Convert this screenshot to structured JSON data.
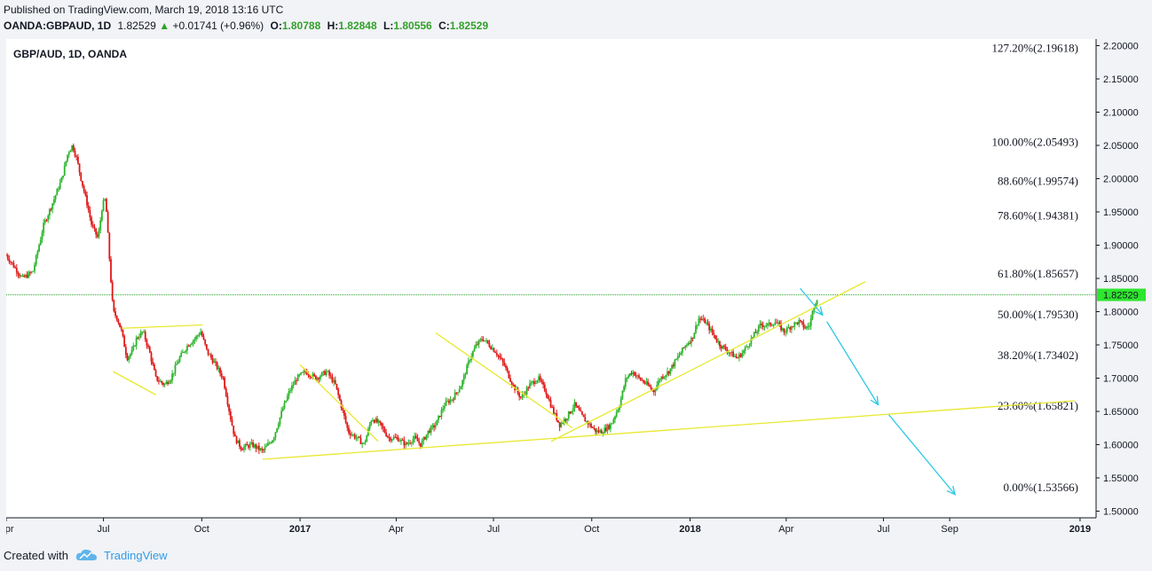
{
  "header": {
    "published": "Published on TradingView.com, March 19, 2018 13:16 UTC",
    "symbol": "OANDA:GBPAUD, 1D",
    "last": "1.82529",
    "change": "+0.01741 (+0.96%)",
    "o_label": "O:",
    "o": "1.80788",
    "h_label": "H:",
    "h": "1.82848",
    "l_label": "L:",
    "l": "1.80556",
    "c_label": "C:",
    "c": "1.82529"
  },
  "footer": {
    "created": "Created with",
    "brand": "TradingView"
  },
  "colors": {
    "up": "#2db52d",
    "down": "#e01818",
    "trend": "#e8e830",
    "arrow": "#2bc9e3",
    "price_tag": "#2ee62e"
  },
  "chart_data": {
    "type": "candlestick",
    "title": "GBP/AUD, 1D, OANDA",
    "ylim": [
      1.49,
      2.21
    ],
    "yticks": [
      "2.20000",
      "2.15000",
      "2.10000",
      "2.05000",
      "2.00000",
      "1.95000",
      "1.90000",
      "1.85000",
      "1.80000",
      "1.75000",
      "1.70000",
      "1.65000",
      "1.60000",
      "1.55000",
      "1.50000"
    ],
    "xticks": [
      "Apr",
      "Jul",
      "Oct",
      "2017",
      "Apr",
      "Jul",
      "Oct",
      "2018",
      "Apr",
      "Jul",
      "Sep",
      "2019"
    ],
    "x_tick_days": [
      0,
      91,
      183,
      275,
      365,
      456,
      548,
      640,
      730,
      821,
      883,
      1005
    ],
    "x_range_days": [
      0,
      1020
    ],
    "current_price": {
      "label": "1.82529",
      "value": 1.82529
    },
    "fib_levels": [
      {
        "label": "127.20%(2.19618)",
        "value": 2.19618
      },
      {
        "label": "100.00%(2.05493)",
        "value": 2.05493
      },
      {
        "label": "88.60%(1.99574)",
        "value": 1.99574
      },
      {
        "label": "78.60%(1.94381)",
        "value": 1.94381
      },
      {
        "label": "61.80%(1.85657)",
        "value": 1.85657
      },
      {
        "label": "50.00%(1.79530)",
        "value": 1.7953
      },
      {
        "label": "38.20%(1.73402)",
        "value": 1.73402
      },
      {
        "label": "23.60%(1.65821)",
        "value": 1.65821
      },
      {
        "label": "0.00%(1.53566)",
        "value": 1.53566
      }
    ],
    "price_path": [
      [
        0,
        1.885
      ],
      [
        15,
        1.85
      ],
      [
        25,
        1.86
      ],
      [
        35,
        1.93
      ],
      [
        45,
        1.97
      ],
      [
        52,
        2.0
      ],
      [
        58,
        2.04
      ],
      [
        62,
        2.05
      ],
      [
        66,
        2.03
      ],
      [
        70,
        2.0
      ],
      [
        76,
        1.96
      ],
      [
        80,
        1.93
      ],
      [
        86,
        1.91
      ],
      [
        90,
        1.96
      ],
      [
        93,
        1.97
      ],
      [
        97,
        1.87
      ],
      [
        100,
        1.8
      ],
      [
        104,
        1.79
      ],
      [
        108,
        1.77
      ],
      [
        113,
        1.73
      ],
      [
        118,
        1.74
      ],
      [
        122,
        1.76
      ],
      [
        128,
        1.77
      ],
      [
        134,
        1.74
      ],
      [
        140,
        1.7
      ],
      [
        148,
        1.69
      ],
      [
        154,
        1.7
      ],
      [
        162,
        1.73
      ],
      [
        170,
        1.75
      ],
      [
        177,
        1.76
      ],
      [
        182,
        1.77
      ],
      [
        188,
        1.74
      ],
      [
        196,
        1.72
      ],
      [
        203,
        1.7
      ],
      [
        210,
        1.64
      ],
      [
        214,
        1.61
      ],
      [
        220,
        1.595
      ],
      [
        230,
        1.6
      ],
      [
        240,
        1.59
      ],
      [
        250,
        1.61
      ],
      [
        258,
        1.65
      ],
      [
        265,
        1.68
      ],
      [
        272,
        1.7
      ],
      [
        280,
        1.71
      ],
      [
        290,
        1.7
      ],
      [
        300,
        1.71
      ],
      [
        308,
        1.69
      ],
      [
        315,
        1.65
      ],
      [
        320,
        1.62
      ],
      [
        328,
        1.61
      ],
      [
        335,
        1.6
      ],
      [
        342,
        1.64
      ],
      [
        350,
        1.63
      ],
      [
        358,
        1.61
      ],
      [
        366,
        1.61
      ],
      [
        374,
        1.6
      ],
      [
        382,
        1.61
      ],
      [
        388,
        1.6
      ],
      [
        395,
        1.62
      ],
      [
        402,
        1.63
      ],
      [
        410,
        1.66
      ],
      [
        418,
        1.67
      ],
      [
        426,
        1.69
      ],
      [
        434,
        1.73
      ],
      [
        440,
        1.75
      ],
      [
        446,
        1.76
      ],
      [
        452,
        1.75
      ],
      [
        458,
        1.74
      ],
      [
        466,
        1.72
      ],
      [
        474,
        1.69
      ],
      [
        482,
        1.67
      ],
      [
        490,
        1.69
      ],
      [
        498,
        1.7
      ],
      [
        505,
        1.68
      ],
      [
        512,
        1.65
      ],
      [
        518,
        1.63
      ],
      [
        524,
        1.64
      ],
      [
        532,
        1.66
      ],
      [
        540,
        1.64
      ],
      [
        546,
        1.63
      ],
      [
        552,
        1.62
      ],
      [
        558,
        1.62
      ],
      [
        566,
        1.63
      ],
      [
        574,
        1.66
      ],
      [
        580,
        1.7
      ],
      [
        586,
        1.71
      ],
      [
        592,
        1.7
      ],
      [
        600,
        1.69
      ],
      [
        606,
        1.68
      ],
      [
        612,
        1.7
      ],
      [
        620,
        1.71
      ],
      [
        628,
        1.73
      ],
      [
        636,
        1.75
      ],
      [
        642,
        1.76
      ],
      [
        648,
        1.79
      ],
      [
        654,
        1.785
      ],
      [
        660,
        1.77
      ],
      [
        668,
        1.75
      ],
      [
        676,
        1.74
      ],
      [
        684,
        1.73
      ],
      [
        690,
        1.74
      ],
      [
        698,
        1.76
      ],
      [
        706,
        1.78
      ],
      [
        714,
        1.78
      ],
      [
        720,
        1.785
      ],
      [
        728,
        1.77
      ],
      [
        736,
        1.78
      ],
      [
        742,
        1.785
      ],
      [
        748,
        1.775
      ],
      [
        752,
        1.78
      ],
      [
        756,
        1.81
      ],
      [
        760,
        1.825
      ]
    ],
    "trend_lines": [
      [
        [
          108,
          1.775
        ],
        [
          184,
          1.78
        ]
      ],
      [
        [
          100,
          1.71
        ],
        [
          140,
          1.675
        ]
      ],
      [
        [
          240,
          1.578
        ],
        [
          1000,
          1.666
        ]
      ],
      [
        [
          275,
          1.72
        ],
        [
          348,
          1.605
        ]
      ],
      [
        [
          402,
          1.768
        ],
        [
          530,
          1.625
        ]
      ],
      [
        [
          510,
          1.605
        ],
        [
          804,
          1.845
        ]
      ]
    ],
    "arrows": [
      [
        [
          743,
          1.835
        ],
        [
          764,
          1.795
        ]
      ],
      [
        [
          768,
          1.785
        ],
        [
          816,
          1.66
        ]
      ],
      [
        [
          826,
          1.645
        ],
        [
          888,
          1.525
        ]
      ]
    ]
  }
}
